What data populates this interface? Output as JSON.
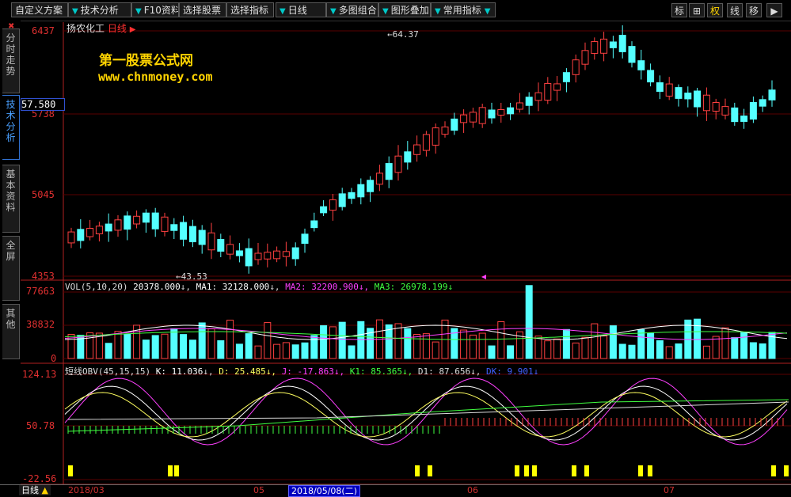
{
  "toolbar": {
    "menus": [
      "自定义方案",
      "技术分析",
      "F10资料",
      "选择股票",
      "选择指标",
      "日线",
      "多图组合",
      "图形叠加",
      "常用指标"
    ],
    "right_buttons": [
      "标",
      "⊞",
      "权",
      "线",
      "移",
      "▶"
    ]
  },
  "sidebar": {
    "tabs": [
      "分时走势",
      "技术分析",
      "基本资料",
      "全屏",
      "其他"
    ]
  },
  "stock": {
    "name": "扬农化工",
    "period": "日线",
    "current_price": "57.580",
    "high_marker": "64.37",
    "low_marker": "43.53"
  },
  "watermark": {
    "title": "第一股票公式网",
    "url": "www.chnmoney.com"
  },
  "price_axis": [
    "6437",
    "5738",
    "5045",
    "4353"
  ],
  "volume_axis": [
    "77663",
    "38832",
    "0"
  ],
  "obv_axis": [
    "124.13",
    "50.78",
    "-22.56"
  ],
  "volume_info": {
    "label": "VOL(5,10,20)",
    "value": "20378.000",
    "ma1": "MA1: 32128.000",
    "ma2": "MA2: 32200.900",
    "ma3": "MA3: 26978.199"
  },
  "obv_info": {
    "label": "短线OBV(45,15,15)",
    "k": "K: 11.036",
    "d": "D: 25.485",
    "j": "J: -17.863",
    "k1": "K1: 85.365",
    "d1": "D1: 87.656",
    "dk": "DK: 9.901"
  },
  "status_bar": {
    "period": "日线",
    "dates": [
      "2018/03",
      "05",
      "2018/05/08(二)",
      "06",
      "07"
    ]
  },
  "colors": {
    "up": "#ff4040",
    "down": "#54ffff",
    "ma1": "#ffffff",
    "ma2": "#ff40ff",
    "ma3": "#40ff40",
    "signal": "#ffff00"
  }
}
